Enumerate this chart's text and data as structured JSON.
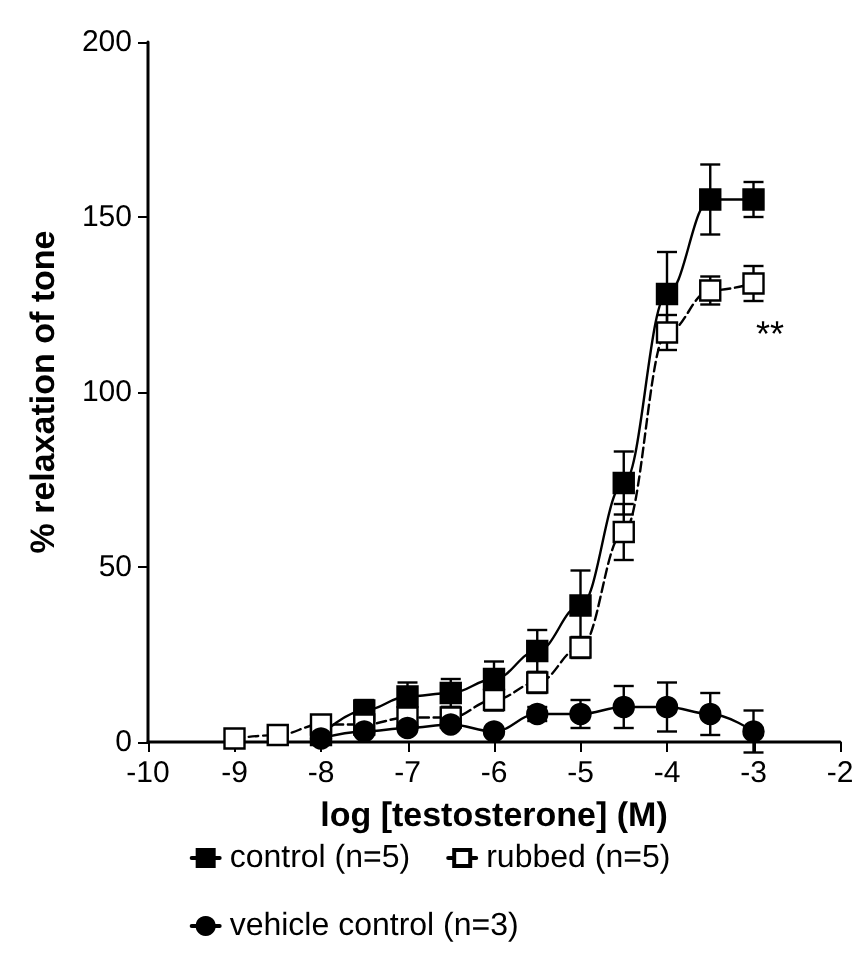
{
  "chart_data": {
    "type": "line",
    "xlabel": "log [testosterone] (M)",
    "ylabel": "% relaxation of tone",
    "xlim": [
      -10,
      -2
    ],
    "xticks": [
      -10,
      -9,
      -8,
      -7,
      -6,
      -5,
      -4,
      -3,
      -2
    ],
    "ylim": [
      0,
      200
    ],
    "yticks": [
      0,
      50,
      100,
      150,
      200
    ],
    "grid": false,
    "legend": "bottom",
    "annotations": [
      "**"
    ],
    "series": [
      {
        "name": "control (n=5)",
        "color": "#000000",
        "marker": "square",
        "line_style": "solid",
        "x": [
          -8,
          -7.5,
          -7,
          -6.5,
          -6,
          -5.5,
          -5,
          -4.5,
          -4,
          -3.5,
          -3
        ],
        "values": [
          2,
          9,
          13,
          14,
          18,
          26,
          39,
          74,
          128,
          155,
          155
        ],
        "errors": [
          1,
          3,
          4,
          4,
          5,
          6,
          10,
          9,
          12,
          10,
          5
        ]
      },
      {
        "name": "rubbed (n=5)",
        "color": "#ffffff",
        "marker": "square",
        "line_style": "dashed",
        "x": [
          -9,
          -8.5,
          -8,
          -7.5,
          -7,
          -6.5,
          -6,
          -5.5,
          -5,
          -4.5,
          -4,
          -3.5,
          -3
        ],
        "values": [
          1,
          2,
          5,
          5,
          7,
          7,
          12,
          17,
          27,
          60,
          117,
          129,
          131
        ],
        "errors": [
          null,
          null,
          2,
          2,
          2,
          3,
          3,
          3,
          3,
          8,
          5,
          4,
          5
        ]
      },
      {
        "name": "vehicle control (n=3)",
        "color": "#000000",
        "marker": "circle",
        "line_style": "solid",
        "x": [
          -8,
          -7.5,
          -7,
          -6.5,
          -6,
          -5.5,
          -5,
          -4.5,
          -4,
          -3.5,
          -3
        ],
        "values": [
          1,
          3,
          4,
          5,
          3,
          8,
          8,
          10,
          10,
          8,
          3
        ],
        "errors": [
          1,
          1,
          1,
          1,
          1,
          2,
          4,
          6,
          7,
          6,
          6
        ]
      }
    ]
  }
}
